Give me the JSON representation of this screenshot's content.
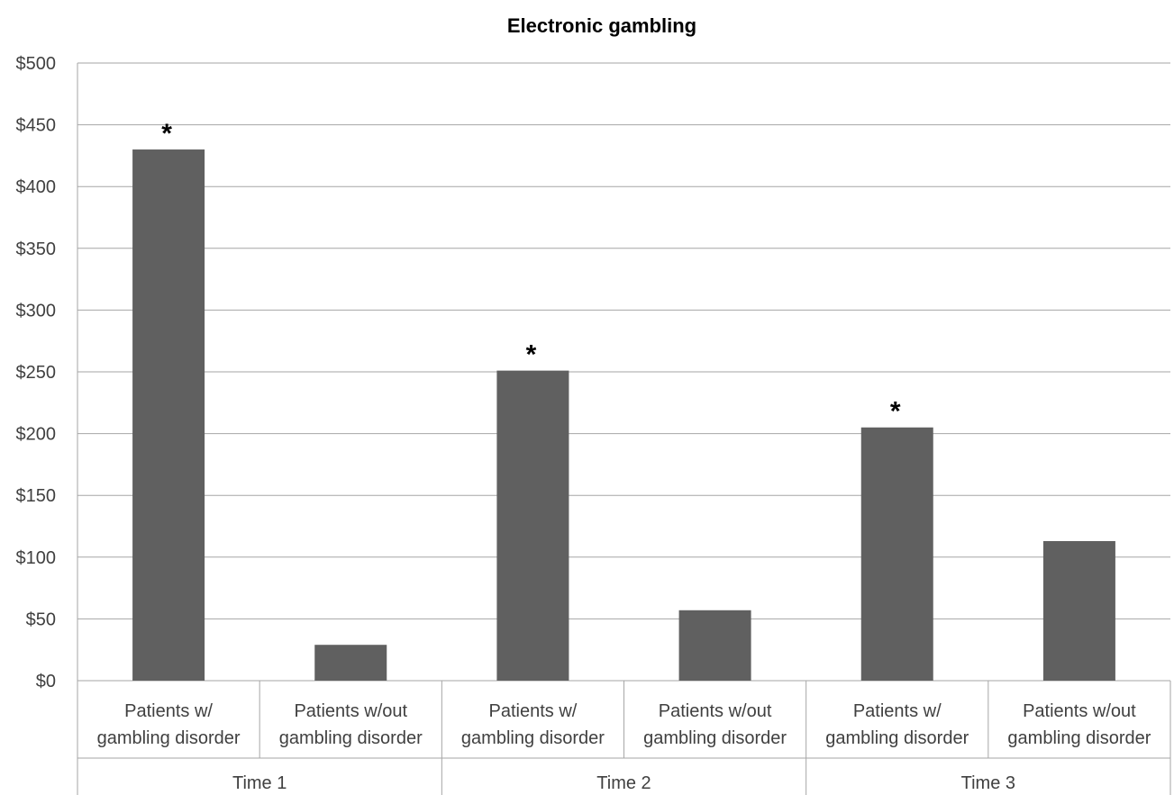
{
  "chart_data": {
    "type": "bar",
    "title": "Electronic gambling",
    "xlabel": "",
    "ylabel": "",
    "ylim": [
      0,
      500
    ],
    "ytick_step": 50,
    "ytick_prefix": "$",
    "grid": true,
    "legend": "none",
    "bar_color": "#606060",
    "groups": [
      "Time 1",
      "Time 2",
      "Time 3"
    ],
    "categories": [
      [
        "Patients w/",
        "gambling disorder"
      ],
      [
        "Patients w/out",
        "gambling disorder"
      ],
      [
        "Patients w/",
        "gambling disorder"
      ],
      [
        "Patients w/out",
        "gambling disorder"
      ],
      [
        "Patients w/",
        "gambling disorder"
      ],
      [
        "Patients w/out",
        "gambling disorder"
      ]
    ],
    "values": [
      430,
      29,
      251,
      57,
      205,
      113
    ],
    "annotations": [
      "*",
      "",
      "*",
      "",
      "*",
      ""
    ]
  }
}
